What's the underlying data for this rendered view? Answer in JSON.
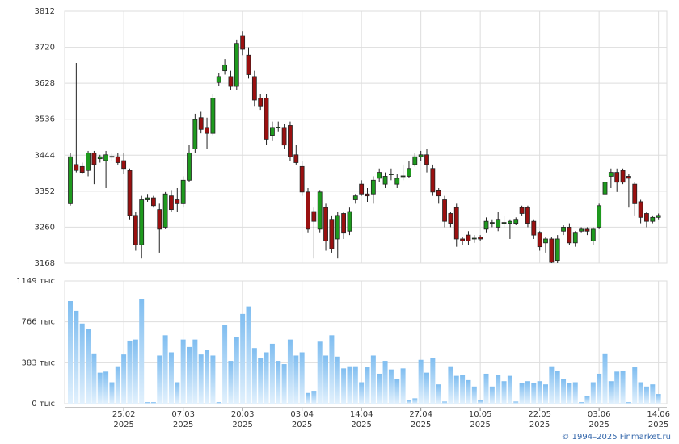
{
  "chart_data": {
    "type": "candlestick",
    "up_color": "#1e9a1e",
    "down_color": "#9a1010",
    "volume_color": "#7fbdf0",
    "year_label": "2025",
    "copyright": "© 1994–2025 Finmarket.ru",
    "ylim": [
      3168,
      3812
    ],
    "yticks": [
      3168,
      3260,
      3352,
      3444,
      3536,
      3628,
      3720,
      3812
    ],
    "volume_ylim": [
      0,
      1149
    ],
    "volume_yticks": [
      {
        "value": 0,
        "label": "0 тыс"
      },
      {
        "value": 383,
        "label": "383 тыс"
      },
      {
        "value": 766,
        "label": "766 тыс"
      },
      {
        "value": 1149,
        "label": "1149 тыс"
      }
    ],
    "grid": true,
    "categories": [
      null,
      null,
      null,
      null,
      null,
      null,
      null,
      null,
      null,
      "25.02",
      null,
      null,
      null,
      null,
      null,
      null,
      null,
      null,
      null,
      "07.03",
      null,
      null,
      null,
      null,
      null,
      null,
      null,
      null,
      null,
      "20.03",
      null,
      null,
      null,
      null,
      null,
      null,
      null,
      null,
      null,
      "03.04",
      null,
      null,
      null,
      null,
      null,
      null,
      null,
      null,
      null,
      "14.04",
      null,
      null,
      null,
      null,
      null,
      null,
      null,
      null,
      null,
      "27.04",
      null,
      null,
      null,
      null,
      null,
      null,
      null,
      null,
      null,
      "10.05",
      null,
      null,
      null,
      null,
      null,
      null,
      null,
      null,
      null,
      "22.05",
      null,
      null,
      null,
      null,
      null,
      null,
      null,
      null,
      null,
      "03.06",
      null,
      null,
      null,
      null,
      null,
      null,
      null,
      null,
      null,
      "14.06"
    ],
    "candles": [
      {
        "o": 3320,
        "h": 3450,
        "l": 3315,
        "c": 3440
      },
      {
        "o": 3420,
        "h": 3680,
        "l": 3400,
        "c": 3405
      },
      {
        "o": 3415,
        "h": 3425,
        "l": 3395,
        "c": 3400
      },
      {
        "o": 3405,
        "h": 3455,
        "l": 3390,
        "c": 3450
      },
      {
        "o": 3450,
        "h": 3455,
        "l": 3370,
        "c": 3420
      },
      {
        "o": 3435,
        "h": 3445,
        "l": 3425,
        "c": 3440
      },
      {
        "o": 3430,
        "h": 3455,
        "l": 3360,
        "c": 3445
      },
      {
        "o": 3440,
        "h": 3450,
        "l": 3430,
        "c": 3441
      },
      {
        "o": 3440,
        "h": 3450,
        "l": 3420,
        "c": 3425
      },
      {
        "o": 3430,
        "h": 3450,
        "l": 3395,
        "c": 3410
      },
      {
        "o": 3405,
        "h": 3410,
        "l": 3280,
        "c": 3290
      },
      {
        "o": 3290,
        "h": 3300,
        "l": 3200,
        "c": 3215
      },
      {
        "o": 3215,
        "h": 3340,
        "l": 3180,
        "c": 3330
      },
      {
        "o": 3330,
        "h": 3345,
        "l": 3325,
        "c": 3335
      },
      {
        "o": 3335,
        "h": 3340,
        "l": 3310,
        "c": 3315
      },
      {
        "o": 3305,
        "h": 3320,
        "l": 3195,
        "c": 3255
      },
      {
        "o": 3260,
        "h": 3350,
        "l": 3255,
        "c": 3345
      },
      {
        "o": 3340,
        "h": 3355,
        "l": 3300,
        "c": 3305
      },
      {
        "o": 3330,
        "h": 3360,
        "l": 3300,
        "c": 3320
      },
      {
        "o": 3320,
        "h": 3390,
        "l": 3310,
        "c": 3380
      },
      {
        "o": 3380,
        "h": 3470,
        "l": 3375,
        "c": 3450
      },
      {
        "o": 3460,
        "h": 3550,
        "l": 3450,
        "c": 3535
      },
      {
        "o": 3540,
        "h": 3555,
        "l": 3500,
        "c": 3510
      },
      {
        "o": 3515,
        "h": 3540,
        "l": 3460,
        "c": 3500
      },
      {
        "o": 3500,
        "h": 3600,
        "l": 3495,
        "c": 3590
      },
      {
        "o": 3630,
        "h": 3655,
        "l": 3620,
        "c": 3645
      },
      {
        "o": 3660,
        "h": 3690,
        "l": 3650,
        "c": 3675
      },
      {
        "o": 3645,
        "h": 3660,
        "l": 3610,
        "c": 3620
      },
      {
        "o": 3620,
        "h": 3740,
        "l": 3610,
        "c": 3730
      },
      {
        "o": 3750,
        "h": 3760,
        "l": 3700,
        "c": 3715
      },
      {
        "o": 3700,
        "h": 3720,
        "l": 3640,
        "c": 3650
      },
      {
        "o": 3645,
        "h": 3660,
        "l": 3570,
        "c": 3585
      },
      {
        "o": 3590,
        "h": 3600,
        "l": 3560,
        "c": 3570
      },
      {
        "o": 3590,
        "h": 3600,
        "l": 3470,
        "c": 3485
      },
      {
        "o": 3495,
        "h": 3530,
        "l": 3480,
        "c": 3515
      },
      {
        "o": 3515,
        "h": 3530,
        "l": 3505,
        "c": 3516
      },
      {
        "o": 3515,
        "h": 3525,
        "l": 3460,
        "c": 3470
      },
      {
        "o": 3520,
        "h": 3530,
        "l": 3430,
        "c": 3440
      },
      {
        "o": 3445,
        "h": 3470,
        "l": 3420,
        "c": 3425
      },
      {
        "o": 3415,
        "h": 3430,
        "l": 3340,
        "c": 3350
      },
      {
        "o": 3350,
        "h": 3360,
        "l": 3245,
        "c": 3255
      },
      {
        "o": 3300,
        "h": 3310,
        "l": 3180,
        "c": 3275
      },
      {
        "o": 3255,
        "h": 3355,
        "l": 3245,
        "c": 3350
      },
      {
        "o": 3310,
        "h": 3320,
        "l": 3200,
        "c": 3225
      },
      {
        "o": 3280,
        "h": 3290,
        "l": 3195,
        "c": 3205
      },
      {
        "o": 3230,
        "h": 3300,
        "l": 3180,
        "c": 3290
      },
      {
        "o": 3295,
        "h": 3300,
        "l": 3230,
        "c": 3245
      },
      {
        "o": 3250,
        "h": 3310,
        "l": 3240,
        "c": 3300
      },
      {
        "o": 3330,
        "h": 3345,
        "l": 3320,
        "c": 3340
      },
      {
        "o": 3370,
        "h": 3380,
        "l": 3340,
        "c": 3345
      },
      {
        "o": 3345,
        "h": 3360,
        "l": 3325,
        "c": 3340
      },
      {
        "o": 3345,
        "h": 3390,
        "l": 3320,
        "c": 3380
      },
      {
        "o": 3385,
        "h": 3410,
        "l": 3375,
        "c": 3400
      },
      {
        "o": 3370,
        "h": 3400,
        "l": 3360,
        "c": 3390
      },
      {
        "o": 3395,
        "h": 3410,
        "l": 3380,
        "c": 3396
      },
      {
        "o": 3370,
        "h": 3395,
        "l": 3360,
        "c": 3385
      },
      {
        "o": 3390,
        "h": 3420,
        "l": 3380,
        "c": 3391
      },
      {
        "o": 3390,
        "h": 3430,
        "l": 3385,
        "c": 3410
      },
      {
        "o": 3420,
        "h": 3450,
        "l": 3415,
        "c": 3440
      },
      {
        "o": 3440,
        "h": 3455,
        "l": 3430,
        "c": 3445
      },
      {
        "o": 3445,
        "h": 3460,
        "l": 3400,
        "c": 3420
      },
      {
        "o": 3410,
        "h": 3420,
        "l": 3340,
        "c": 3350
      },
      {
        "o": 3355,
        "h": 3360,
        "l": 3320,
        "c": 3340
      },
      {
        "o": 3330,
        "h": 3340,
        "l": 3260,
        "c": 3275
      },
      {
        "o": 3295,
        "h": 3300,
        "l": 3260,
        "c": 3270
      },
      {
        "o": 3310,
        "h": 3320,
        "l": 3210,
        "c": 3230
      },
      {
        "o": 3230,
        "h": 3235,
        "l": 3215,
        "c": 3225
      },
      {
        "o": 3240,
        "h": 3250,
        "l": 3215,
        "c": 3225
      },
      {
        "o": 3230,
        "h": 3240,
        "l": 3220,
        "c": 3232
      },
      {
        "o": 3235,
        "h": 3240,
        "l": 3225,
        "c": 3230
      },
      {
        "o": 3255,
        "h": 3285,
        "l": 3245,
        "c": 3275
      },
      {
        "o": 3270,
        "h": 3280,
        "l": 3260,
        "c": 3272
      },
      {
        "o": 3260,
        "h": 3300,
        "l": 3250,
        "c": 3280
      },
      {
        "o": 3270,
        "h": 3290,
        "l": 3260,
        "c": 3272
      },
      {
        "o": 3270,
        "h": 3280,
        "l": 3230,
        "c": 3275
      },
      {
        "o": 3270,
        "h": 3285,
        "l": 3265,
        "c": 3280
      },
      {
        "o": 3310,
        "h": 3315,
        "l": 3290,
        "c": 3295
      },
      {
        "o": 3310,
        "h": 3315,
        "l": 3260,
        "c": 3270
      },
      {
        "o": 3275,
        "h": 3280,
        "l": 3230,
        "c": 3240
      },
      {
        "o": 3245,
        "h": 3250,
        "l": 3200,
        "c": 3210
      },
      {
        "o": 3220,
        "h": 3235,
        "l": 3195,
        "c": 3230
      },
      {
        "o": 3230,
        "h": 3235,
        "l": 3168,
        "c": 3170
      },
      {
        "o": 3175,
        "h": 3240,
        "l": 3168,
        "c": 3230
      },
      {
        "o": 3250,
        "h": 3265,
        "l": 3240,
        "c": 3260
      },
      {
        "o": 3260,
        "h": 3270,
        "l": 3215,
        "c": 3220
      },
      {
        "o": 3220,
        "h": 3250,
        "l": 3210,
        "c": 3245
      },
      {
        "o": 3250,
        "h": 3260,
        "l": 3245,
        "c": 3255
      },
      {
        "o": 3255,
        "h": 3260,
        "l": 3240,
        "c": 3250
      },
      {
        "o": 3225,
        "h": 3260,
        "l": 3215,
        "c": 3255
      },
      {
        "o": 3260,
        "h": 3320,
        "l": 3255,
        "c": 3315
      },
      {
        "o": 3345,
        "h": 3390,
        "l": 3335,
        "c": 3375
      },
      {
        "o": 3390,
        "h": 3410,
        "l": 3360,
        "c": 3400
      },
      {
        "o": 3400,
        "h": 3410,
        "l": 3350,
        "c": 3375
      },
      {
        "o": 3405,
        "h": 3410,
        "l": 3370,
        "c": 3375
      },
      {
        "o": 3390,
        "h": 3395,
        "l": 3310,
        "c": 3385
      },
      {
        "o": 3370,
        "h": 3375,
        "l": 3290,
        "c": 3320
      },
      {
        "o": 3325,
        "h": 3330,
        "l": 3270,
        "c": 3285
      },
      {
        "o": 3295,
        "h": 3300,
        "l": 3260,
        "c": 3275
      },
      {
        "o": 3275,
        "h": 3290,
        "l": 3270,
        "c": 3285
      },
      {
        "o": 3285,
        "h": 3295,
        "l": 3280,
        "c": 3290
      }
    ],
    "volume": [
      960,
      870,
      750,
      700,
      470,
      290,
      300,
      200,
      350,
      460,
      590,
      600,
      980,
      15,
      15,
      450,
      640,
      480,
      200,
      600,
      530,
      600,
      460,
      500,
      450,
      15,
      740,
      400,
      620,
      840,
      910,
      520,
      430,
      480,
      560,
      400,
      370,
      600,
      450,
      480,
      100,
      120,
      580,
      450,
      640,
      440,
      330,
      350,
      350,
      200,
      340,
      450,
      280,
      400,
      320,
      230,
      330,
      30,
      50,
      410,
      290,
      430,
      180,
      20,
      350,
      260,
      270,
      220,
      160,
      30,
      280,
      160,
      270,
      210,
      260,
      20,
      190,
      210,
      190,
      210,
      180,
      350,
      310,
      230,
      190,
      200,
      15,
      70,
      200,
      280,
      470,
      210,
      300,
      310,
      15,
      340,
      200,
      160,
      180,
      90
    ]
  }
}
